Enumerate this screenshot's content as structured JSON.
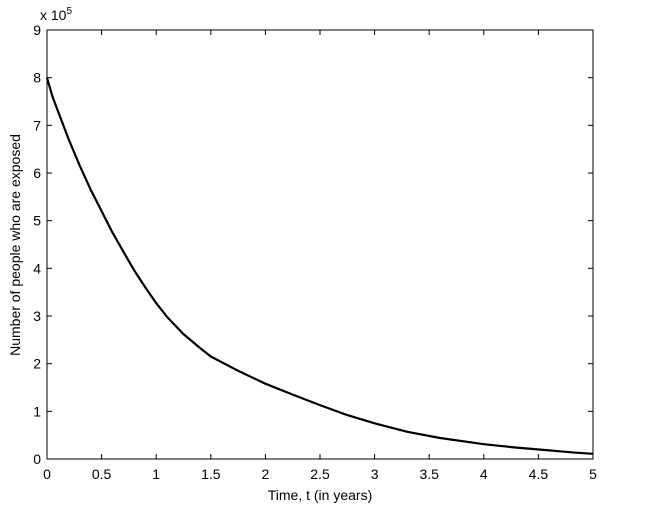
{
  "chart_data": {
    "type": "line",
    "title": "",
    "xlabel": "Time, t (in years)",
    "ylabel": "Number of people who are exposed",
    "exponent_label": {
      "prefix": "x 10",
      "power": "5"
    },
    "xlim": [
      0,
      5
    ],
    "ylim": [
      0,
      9
    ],
    "xticks": [
      0,
      0.5,
      1,
      1.5,
      2,
      2.5,
      3,
      3.5,
      4,
      4.5,
      5
    ],
    "xtick_labels": [
      "0",
      "0.5",
      "1",
      "1.5",
      "2",
      "2.5",
      "3",
      "3.5",
      "4",
      "4.5",
      "5"
    ],
    "yticks": [
      0,
      1,
      2,
      3,
      4,
      5,
      6,
      7,
      8,
      9
    ],
    "ytick_labels": [
      "0",
      "1",
      "2",
      "3",
      "4",
      "5",
      "6",
      "7",
      "8",
      "9"
    ],
    "grid": false,
    "line_color": "#000000",
    "series": [
      {
        "x": [
          0,
          0.05,
          0.1,
          0.2,
          0.3,
          0.4,
          0.5,
          0.6,
          0.7,
          0.8,
          0.9,
          1.0,
          1.1,
          1.25,
          1.4,
          1.5,
          1.75,
          2.0,
          2.25,
          2.5,
          2.75,
          3.0,
          3.3,
          3.6,
          4.0,
          4.3,
          4.6,
          4.8,
          5.0
        ],
        "y": [
          8.0,
          7.6,
          7.3,
          6.7,
          6.15,
          5.65,
          5.2,
          4.75,
          4.35,
          3.95,
          3.6,
          3.27,
          2.98,
          2.62,
          2.33,
          2.15,
          1.85,
          1.58,
          1.35,
          1.13,
          0.92,
          0.75,
          0.57,
          0.44,
          0.31,
          0.24,
          0.18,
          0.14,
          0.11
        ]
      }
    ]
  }
}
